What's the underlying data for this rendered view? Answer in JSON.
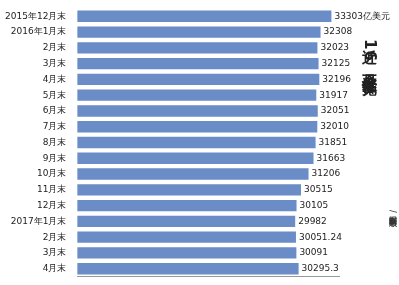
{
  "chart_data": {
    "type": "bar",
    "orientation": "horizontal",
    "title": "近16个月外汇储备一览",
    "annotations": [
      "新京报制图/顾敏"
    ],
    "categories": [
      "2015年12月末",
      "2016年1月末",
      "2月末",
      "3月末",
      "4月末",
      "5月末",
      "6月末",
      "7月末",
      "8月末",
      "9月末",
      "10月末",
      "11月末",
      "12月末",
      "2017年1月末",
      "2月末",
      "3月末",
      "4月末"
    ],
    "values": [
      33303,
      32308,
      32023,
      32125,
      32196,
      31917,
      32051,
      32010,
      31851,
      31663,
      31206,
      30515,
      30105,
      29982,
      30051.24,
      30091,
      30295.3
    ],
    "value_labels": [
      "33303亿美元",
      "32308",
      "32023",
      "32125",
      "32196",
      "31917",
      "32051",
      "32010",
      "31851",
      "31663",
      "31206",
      "30515",
      "30105",
      "29982",
      "30051.24",
      "30091",
      "30295.3"
    ],
    "color": "#6a8cc7",
    "xlim": [
      10000,
      34000
    ],
    "grid": false,
    "data_labels": true,
    "tick_labels": "y"
  }
}
